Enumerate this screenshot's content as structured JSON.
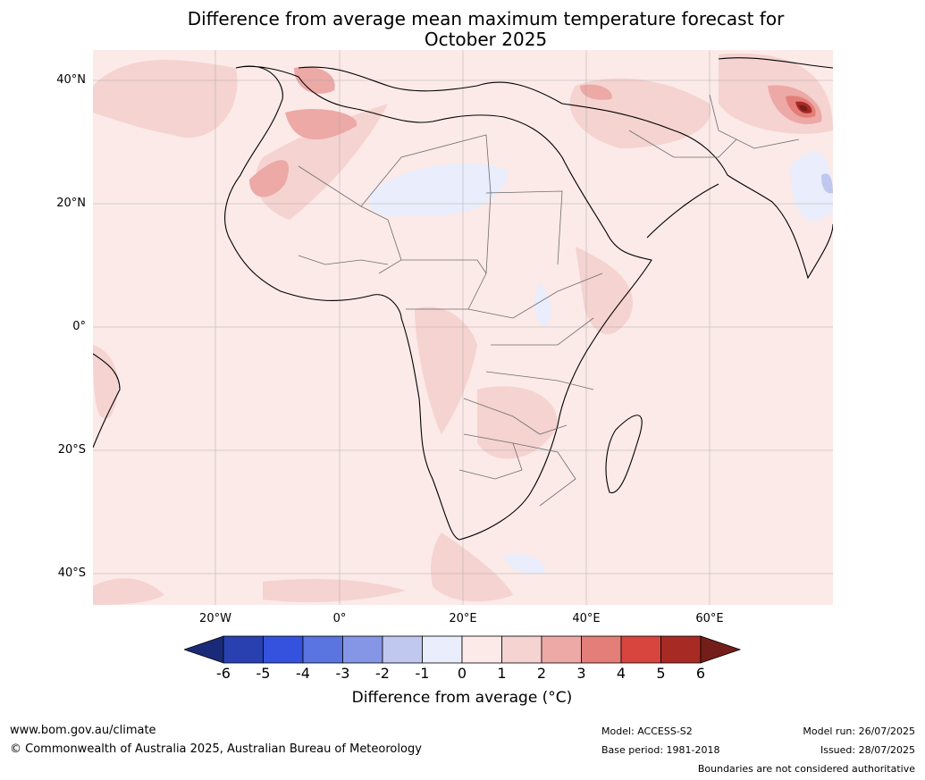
{
  "title": {
    "line1": "Difference from average mean maximum temperature forecast for",
    "line2": "October 2025"
  },
  "map": {
    "lat_labels": [
      "40°N",
      "20°N",
      "0°",
      "20°S",
      "40°S"
    ],
    "lon_labels": [
      "20°W",
      "0°",
      "20°E",
      "40°E",
      "60°E"
    ],
    "background_color": "#fbeae8"
  },
  "colorbar": {
    "ticks": [
      "-6",
      "-5",
      "-4",
      "-3",
      "-2",
      "-1",
      "0",
      "1",
      "2",
      "3",
      "4",
      "5",
      "6"
    ],
    "colors": [
      "#1b2a78",
      "#2941b0",
      "#3452dd",
      "#5a74e0",
      "#8596e6",
      "#c0c8f0",
      "#eaedfb",
      "#fbeae8",
      "#f5d3d1",
      "#eca9a6",
      "#e47e79",
      "#d8453e",
      "#a82a24",
      "#741e19"
    ],
    "label": "Difference from average ($^\\circ$C)",
    "label_display": "Difference from average (°C)"
  },
  "footer": {
    "website": "www.bom.gov.au/climate",
    "copyright": "© Commonwealth of Australia 2025, Australian Bureau of Meteorology",
    "model": "Model: ACCESS-S2",
    "base_period": "Base period: 1981-2018",
    "model_run": "Model run: 26/07/2025",
    "issued": "Issued: 28/07/2025",
    "disclaimer": "Boundaries are not considered authoritative"
  }
}
